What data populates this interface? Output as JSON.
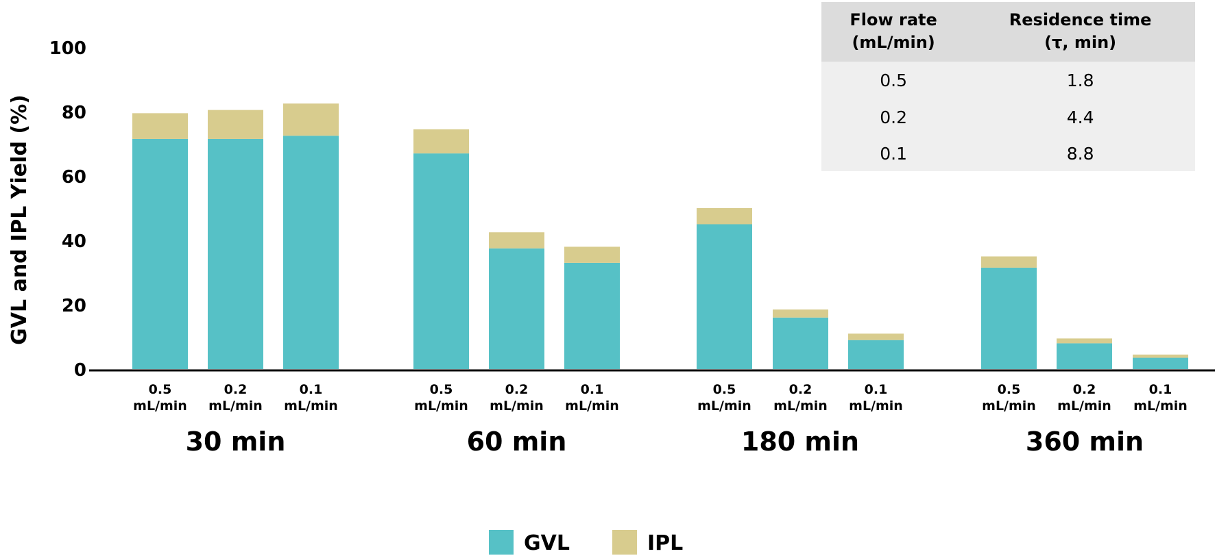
{
  "chart_data": {
    "type": "bar",
    "stacked": true,
    "title": "",
    "ylabel": "GVL and IPL Yield (%)",
    "xlabel": "",
    "ylim": [
      0,
      100
    ],
    "yticks": [
      "0",
      "20",
      "40",
      "60",
      "80",
      "100"
    ],
    "grid": false,
    "legend_position": "bottom-center",
    "colors": {
      "GVL": "#56c1c6",
      "IPL": "#d8cc8e"
    },
    "groups": [
      {
        "label": "30 min",
        "categories": [
          {
            "l1": "0.5",
            "l2": "mL/min"
          },
          {
            "l1": "0.2",
            "l2": "mL/min"
          },
          {
            "l1": "0.1",
            "l2": "mL/min"
          }
        ]
      },
      {
        "label": "60 min",
        "categories": [
          {
            "l1": "0.5",
            "l2": "mL/min"
          },
          {
            "l1": "0.2",
            "l2": "mL/min"
          },
          {
            "l1": "0.1",
            "l2": "mL/min"
          }
        ]
      },
      {
        "label": "180 min",
        "categories": [
          {
            "l1": "0.5",
            "l2": "mL/min"
          },
          {
            "l1": "0.2",
            "l2": "mL/min"
          },
          {
            "l1": "0.1",
            "l2": "mL/min"
          }
        ]
      },
      {
        "label": "360 min",
        "categories": [
          {
            "l1": "0.5",
            "l2": "mL/min"
          },
          {
            "l1": "0.2",
            "l2": "mL/min"
          },
          {
            "l1": "0.1",
            "l2": "mL/min"
          }
        ]
      }
    ],
    "series": [
      {
        "name": "GVL",
        "values": [
          71.5,
          71.5,
          72.5,
          67,
          37.5,
          33,
          45,
          16,
          9,
          31.5,
          8,
          3.5
        ]
      },
      {
        "name": "IPL",
        "values": [
          8,
          9,
          10,
          7.5,
          5,
          5,
          5,
          2.5,
          2,
          3.5,
          1.5,
          1
        ]
      }
    ]
  },
  "table": {
    "headers": [
      [
        "Flow rate",
        "(mL/min)"
      ],
      [
        "Residence time",
        "(τ, min)"
      ]
    ],
    "rows": [
      [
        "0.5",
        "1.8"
      ],
      [
        "0.2",
        "4.4"
      ],
      [
        "0.1",
        "8.8"
      ]
    ]
  }
}
